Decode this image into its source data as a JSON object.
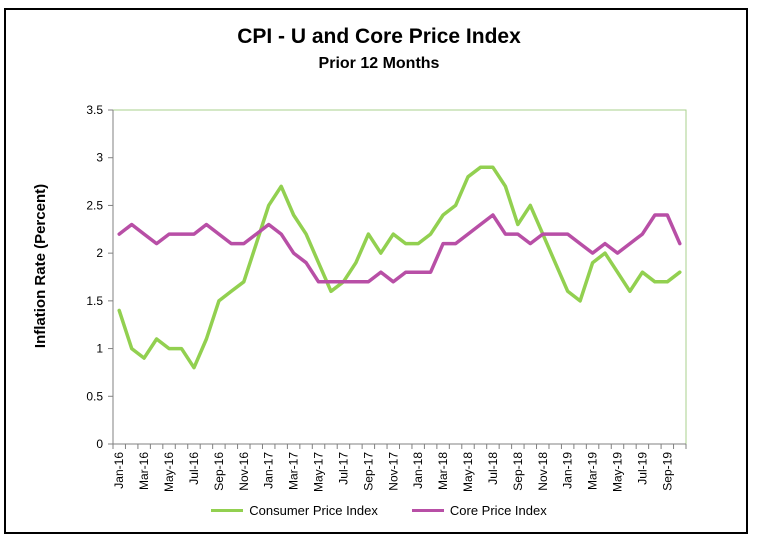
{
  "colors": {
    "cpi": "#92d050",
    "core": "#b84fa6",
    "plot_border": "#a9d18e",
    "axis": "#808080"
  },
  "chart_data": {
    "type": "line",
    "title": "CPI - U and Core Price Index",
    "subtitle": "Prior 12 Months",
    "xlabel": "",
    "ylabel": "Inflation Rate (Percent)",
    "ylim": [
      0,
      3.5
    ],
    "yticks": [
      "0",
      "0.5",
      "1",
      "1.5",
      "2",
      "2.5",
      "3",
      "3.5"
    ],
    "grid": false,
    "legend_position": "bottom",
    "categories": [
      "Jan-16",
      "Feb-16",
      "Mar-16",
      "Apr-16",
      "May-16",
      "Jun-16",
      "Jul-16",
      "Aug-16",
      "Sep-16",
      "Oct-16",
      "Nov-16",
      "Dec-16",
      "Jan-17",
      "Feb-17",
      "Mar-17",
      "Apr-17",
      "May-17",
      "Jun-17",
      "Jul-17",
      "Aug-17",
      "Sep-17",
      "Oct-17",
      "Nov-17",
      "Dec-17",
      "Jan-18",
      "Feb-18",
      "Mar-18",
      "Apr-18",
      "May-18",
      "Jun-18",
      "Jul-18",
      "Aug-18",
      "Sep-18",
      "Oct-18",
      "Nov-18",
      "Dec-18",
      "Jan-19",
      "Feb-19",
      "Mar-19",
      "Apr-19",
      "May-19",
      "Jun-19",
      "Jul-19",
      "Aug-19",
      "Sep-19",
      "Oct-19"
    ],
    "tick_labels": [
      "Jan-16",
      "Mar-16",
      "May-16",
      "Jul-16",
      "Sep-16",
      "Nov-16",
      "Jan-17",
      "Mar-17",
      "May-17",
      "Jul-17",
      "Sep-17",
      "Nov-17",
      "Jan-18",
      "Mar-18",
      "May-18",
      "Jul-18",
      "Sep-18",
      "Nov-18",
      "Jan-19",
      "Mar-19",
      "May-19",
      "Jul-19",
      "Sep-19"
    ],
    "series": [
      {
        "name": "Consumer Price Index",
        "color_key": "cpi",
        "values": [
          1.4,
          1.0,
          0.9,
          1.1,
          1.0,
          1.0,
          0.8,
          1.1,
          1.5,
          1.6,
          1.7,
          2.1,
          2.5,
          2.7,
          2.4,
          2.2,
          1.9,
          1.6,
          1.7,
          1.9,
          2.2,
          2.0,
          2.2,
          2.1,
          2.1,
          2.2,
          2.4,
          2.5,
          2.8,
          2.9,
          2.9,
          2.7,
          2.3,
          2.5,
          2.2,
          1.9,
          1.6,
          1.5,
          1.9,
          2.0,
          1.8,
          1.6,
          1.8,
          1.7,
          1.7,
          1.8
        ]
      },
      {
        "name": "Core Price Index",
        "color_key": "core",
        "values": [
          2.2,
          2.3,
          2.2,
          2.1,
          2.2,
          2.2,
          2.2,
          2.3,
          2.2,
          2.1,
          2.1,
          2.2,
          2.3,
          2.2,
          2.0,
          1.9,
          1.7,
          1.7,
          1.7,
          1.7,
          1.7,
          1.8,
          1.7,
          1.8,
          1.8,
          1.8,
          2.1,
          2.1,
          2.2,
          2.3,
          2.4,
          2.2,
          2.2,
          2.1,
          2.2,
          2.2,
          2.2,
          2.1,
          2.0,
          2.1,
          2.0,
          2.1,
          2.2,
          2.4,
          2.4,
          2.1
        ]
      }
    ]
  }
}
